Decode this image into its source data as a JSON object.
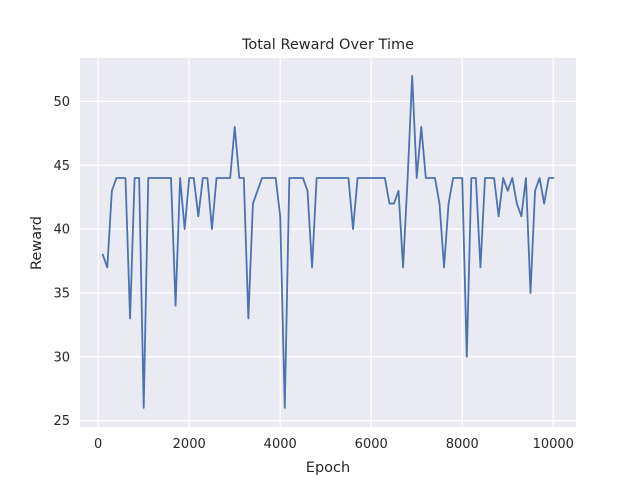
{
  "chart_data": {
    "type": "line",
    "title": "Total Reward Over Time",
    "xlabel": "Epoch",
    "ylabel": "Reward",
    "xlim": [
      -400,
      10500
    ],
    "ylim": [
      24.5,
      53.4
    ],
    "xticks": [
      0,
      2000,
      4000,
      6000,
      8000,
      10000
    ],
    "yticks": [
      25,
      30,
      35,
      40,
      45,
      50
    ],
    "xtick_labels": [
      "0",
      "2000",
      "4000",
      "6000",
      "8000",
      "10000"
    ],
    "ytick_labels": [
      "25",
      "30",
      "35",
      "40",
      "45",
      "50"
    ],
    "grid": true,
    "legend": false,
    "colors": {
      "background": "#eaeaf2",
      "grid": "#ffffff",
      "line": "#4c72b0",
      "text": "#262626"
    },
    "series": [
      {
        "x": [
          100,
          200,
          300,
          400,
          500,
          600,
          700,
          800,
          900,
          1000,
          1100,
          1200,
          1300,
          1400,
          1500,
          1600,
          1700,
          1800,
          1900,
          2000,
          2100,
          2200,
          2300,
          2400,
          2500,
          2600,
          2700,
          2800,
          2900,
          3000,
          3100,
          3200,
          3300,
          3400,
          3500,
          3600,
          3700,
          3800,
          3900,
          4000,
          4100,
          4200,
          4300,
          4400,
          4500,
          4600,
          4700,
          4800,
          4900,
          5000,
          5100,
          5200,
          5300,
          5400,
          5500,
          5600,
          5700,
          5800,
          5900,
          6000,
          6100,
          6200,
          6300,
          6400,
          6500,
          6600,
          6700,
          6800,
          6900,
          7000,
          7100,
          7200,
          7300,
          7400,
          7500,
          7600,
          7700,
          7800,
          7900,
          8000,
          8100,
          8200,
          8300,
          8400,
          8500,
          8600,
          8700,
          8800,
          8900,
          9000,
          9100,
          9200,
          9300,
          9400,
          9500,
          9600,
          9700,
          9800,
          9900,
          10000
        ],
        "values": [
          38,
          37,
          43,
          44,
          44,
          44,
          33,
          44,
          44,
          26,
          44,
          44,
          44,
          44,
          44,
          44,
          34,
          44,
          40,
          44,
          44,
          41,
          44,
          44,
          40,
          44,
          44,
          44,
          44,
          48,
          44,
          44,
          33,
          42,
          43,
          44,
          44,
          44,
          44,
          41,
          26,
          44,
          44,
          44,
          44,
          43,
          37,
          44,
          44,
          44,
          44,
          44,
          44,
          44,
          44,
          40,
          44,
          44,
          44,
          44,
          44,
          44,
          44,
          42,
          42,
          43,
          37,
          44,
          52,
          44,
          48,
          44,
          44,
          44,
          42,
          37,
          42,
          44,
          44,
          44,
          30,
          44,
          44,
          37,
          44,
          44,
          44,
          41,
          44,
          43,
          44,
          42,
          41,
          44,
          35,
          43,
          44,
          42,
          44,
          44
        ]
      }
    ]
  }
}
